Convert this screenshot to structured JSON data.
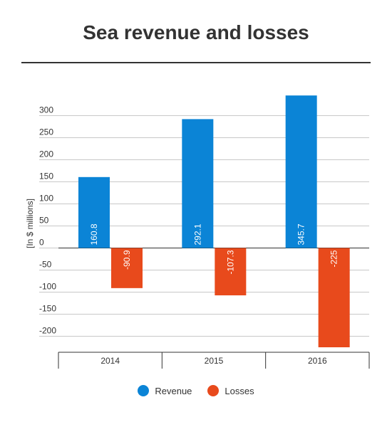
{
  "chart_data": {
    "type": "bar",
    "title": "Sea revenue and losses",
    "xlabel": "",
    "ylabel": "[In $ millions]",
    "categories": [
      "2014",
      "2015",
      "2016"
    ],
    "series": [
      {
        "name": "Revenue",
        "values": [
          160.8,
          292.1,
          345.7
        ],
        "labels": [
          "160.8",
          "292.1",
          "345.7"
        ],
        "color": "#0b84d6"
      },
      {
        "name": "Losses",
        "values": [
          -90.9,
          -107.3,
          -225
        ],
        "labels": [
          "-90.9",
          "-107.3",
          "-225"
        ],
        "color": "#e84a1c"
      }
    ],
    "yticks": [
      300,
      250,
      200,
      150,
      100,
      50,
      0,
      -50,
      -100,
      -150,
      -200
    ],
    "ylim": [
      -235,
      345.7
    ],
    "grid": true,
    "legend": "bottom"
  }
}
